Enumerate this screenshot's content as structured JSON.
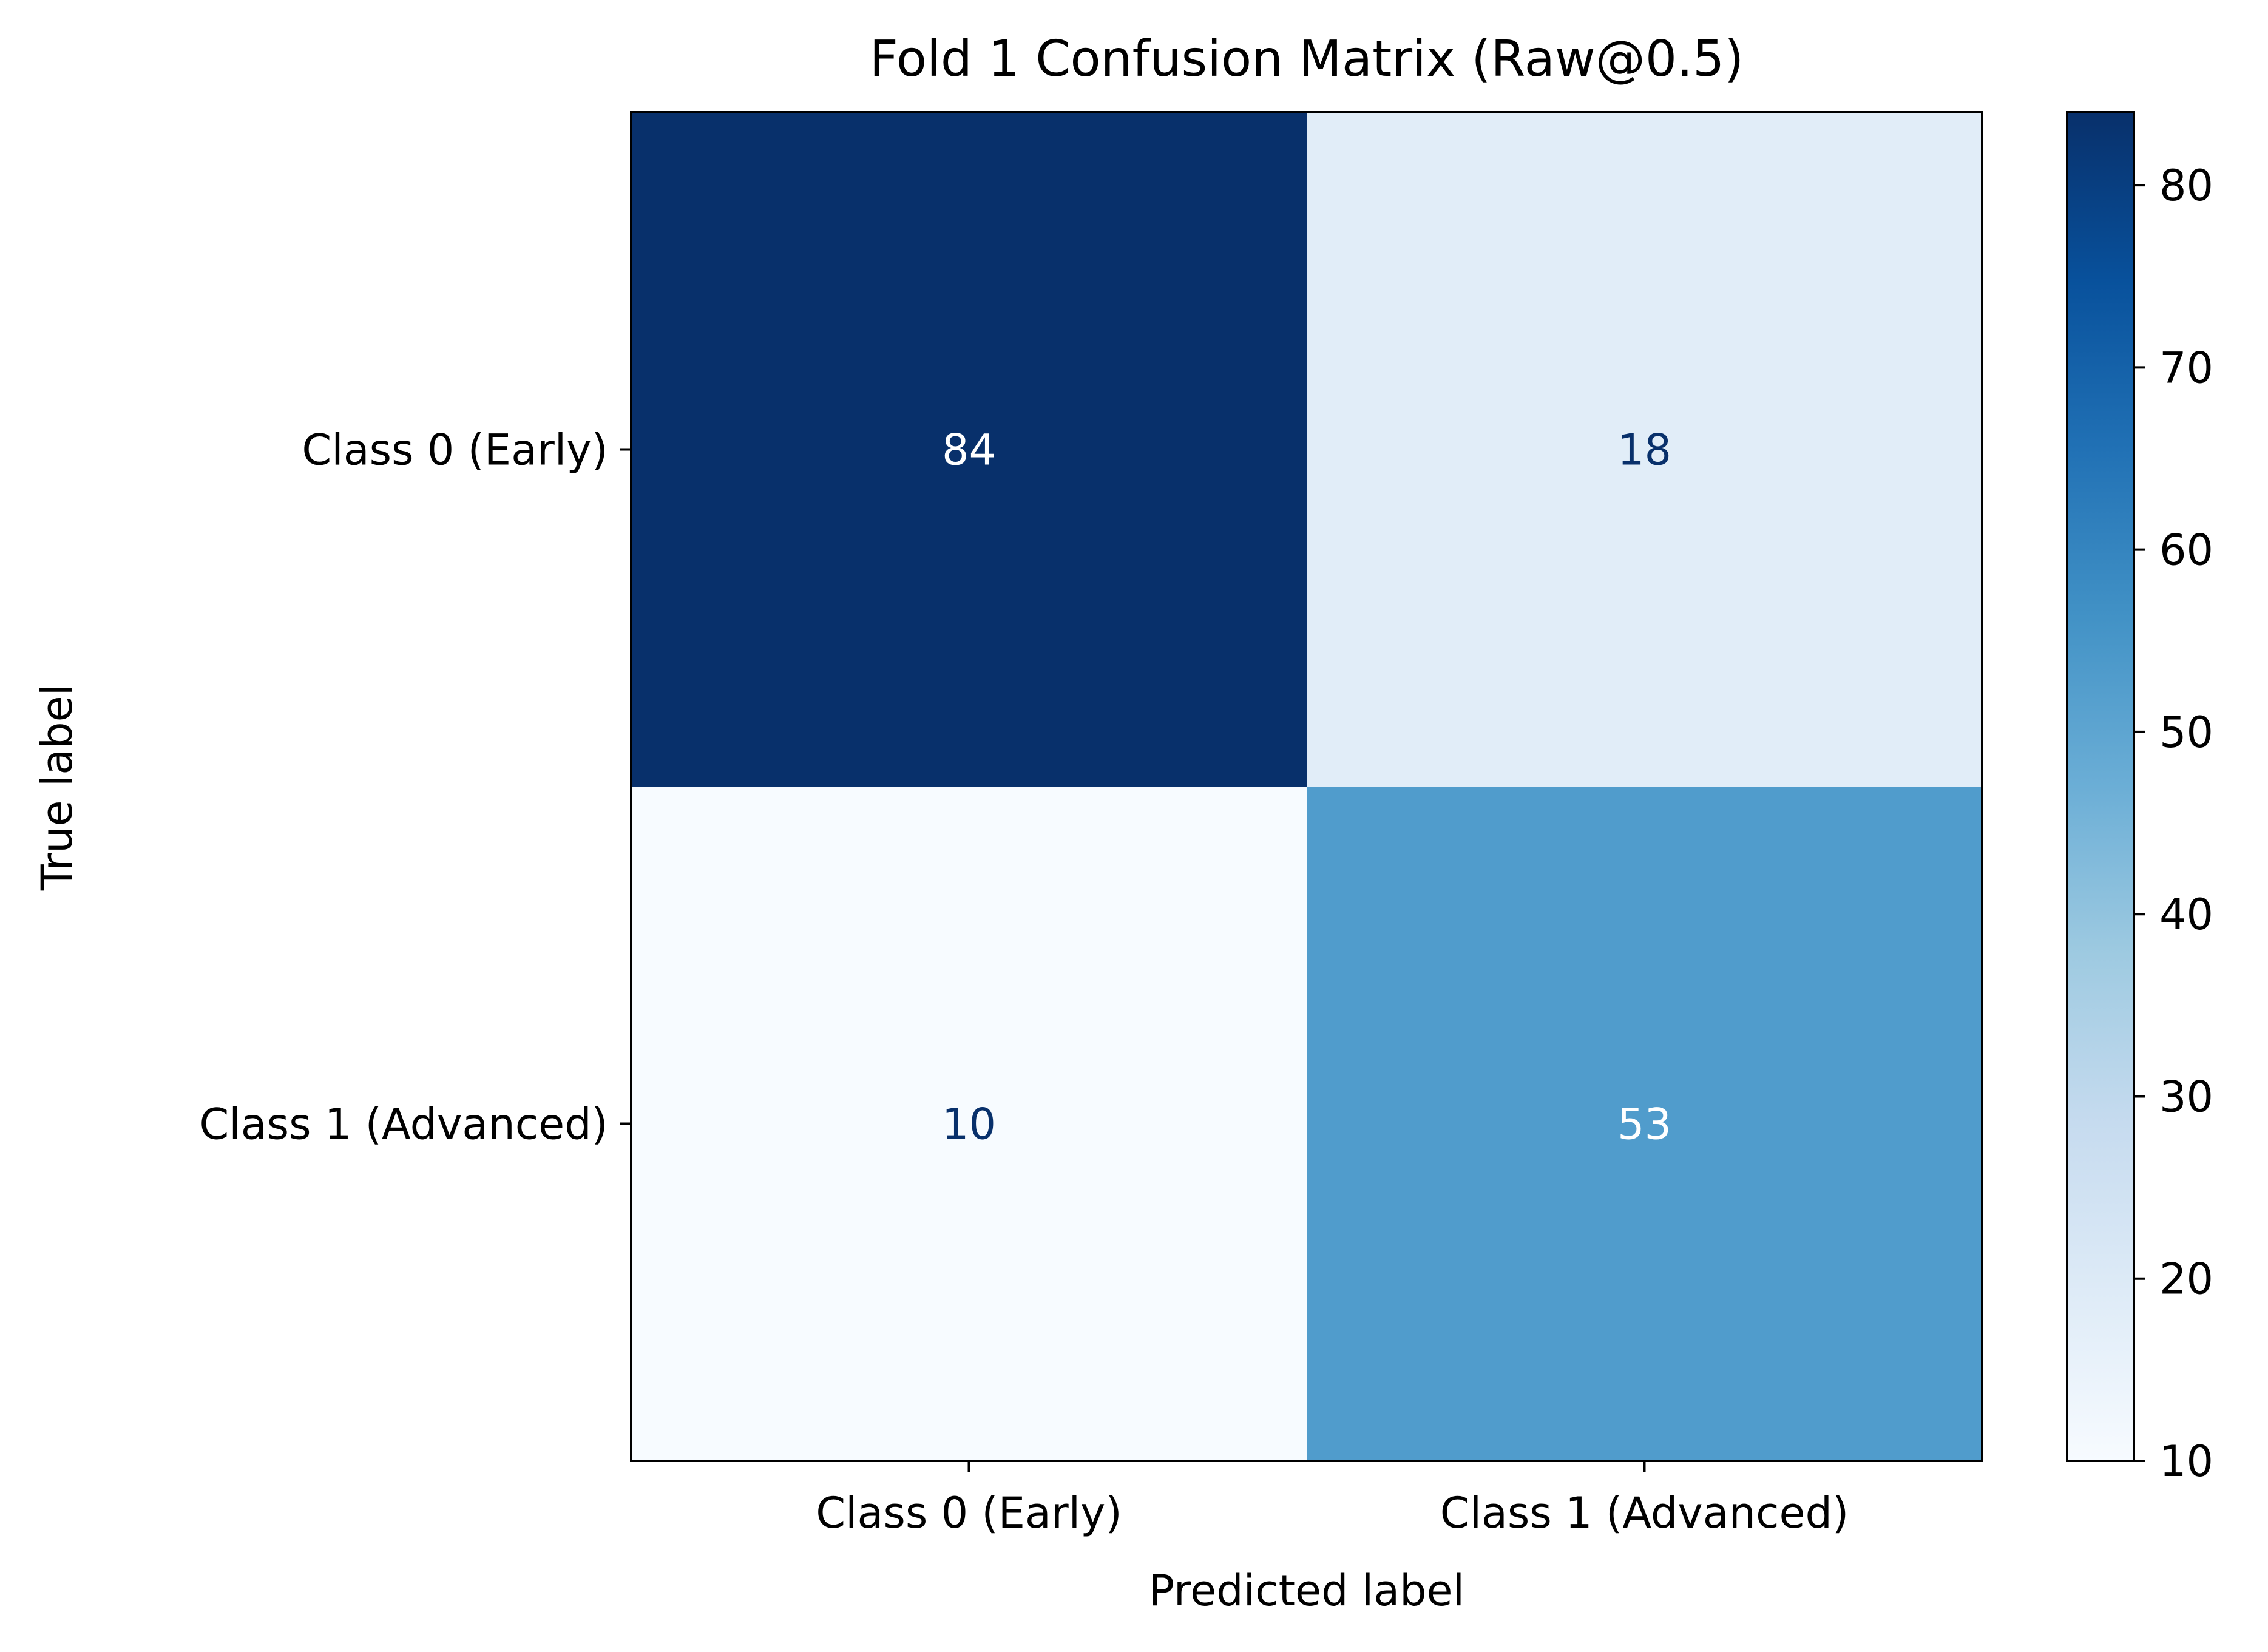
{
  "chart_data": {
    "type": "heatmap",
    "title": "Fold 1 Confusion Matrix (Raw@0.5)",
    "xlabel": "Predicted label",
    "ylabel": "True label",
    "x_categories": [
      "Class 0 (Early)",
      "Class 1 (Advanced)"
    ],
    "y_categories": [
      "Class 0 (Early)",
      "Class 1 (Advanced)"
    ],
    "matrix": [
      [
        84,
        18
      ],
      [
        10,
        53
      ]
    ],
    "colorbar": {
      "range": [
        10,
        84
      ],
      "ticks": [
        10,
        20,
        30,
        40,
        50,
        60,
        70,
        80
      ],
      "colormap": "Blues"
    },
    "grid": false,
    "legend": "none"
  }
}
